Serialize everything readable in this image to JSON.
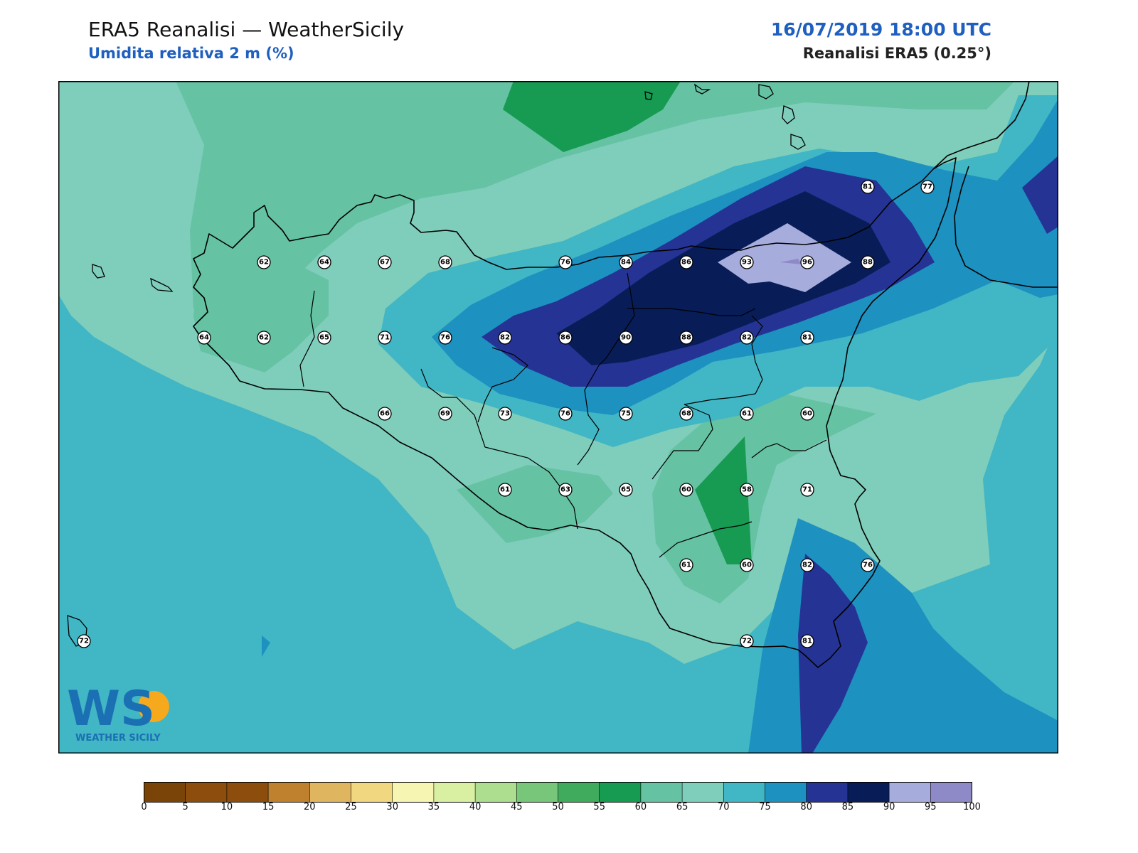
{
  "header": {
    "title": "ERA5 Reanalisi — WeatherSicily",
    "subtitle": "Umidita relativa 2 m (%)",
    "datetime": "16/07/2019 18:00 UTC",
    "source": "Reanalisi ERA5 (0.25°)"
  },
  "logo": {
    "letters": "WS",
    "caption": "WEATHER SICILY"
  },
  "colors": {
    "rh55_60": "#179a52",
    "rh60_65": "#65c2a3",
    "rh65_70": "#7fcdbb",
    "rh70_75": "#41b6c4",
    "rh75_80": "#1d91c0",
    "rh80_85": "#253494",
    "rh85_90": "#081d58",
    "rh90_95": "#a6acdc",
    "rh95_100": "#8e8ac8",
    "coast": "#000000"
  },
  "colorbar": {
    "ticks": [
      "0",
      "5",
      "10",
      "15",
      "20",
      "25",
      "30",
      "35",
      "40",
      "45",
      "50",
      "55",
      "60",
      "65",
      "70",
      "75",
      "80",
      "85",
      "90",
      "95",
      "100"
    ],
    "colors": [
      "#7a4408",
      "#8c4d0d",
      "#8c4d0d",
      "#bf812d",
      "#dfb55f",
      "#f1d780",
      "#f6f6b2",
      "#d9f0a3",
      "#addd8e",
      "#78c679",
      "#41ab5d",
      "#179a52",
      "#65c2a3",
      "#7fcdbb",
      "#41b6c4",
      "#1d91c0",
      "#253494",
      "#081d58",
      "#a6acdc",
      "#8e8ac8"
    ]
  },
  "stations": [
    "62",
    "64",
    "67",
    "68",
    "76",
    "84",
    "86",
    "93",
    "96",
    "88",
    "81",
    "77",
    "64",
    "62",
    "65",
    "71",
    "76",
    "82",
    "86",
    "90",
    "88",
    "82",
    "81",
    "66",
    "69",
    "73",
    "76",
    "75",
    "68",
    "61",
    "60",
    "61",
    "63",
    "65",
    "60",
    "58",
    "71",
    "61",
    "60",
    "82",
    "76",
    "72",
    "81",
    "72"
  ]
}
